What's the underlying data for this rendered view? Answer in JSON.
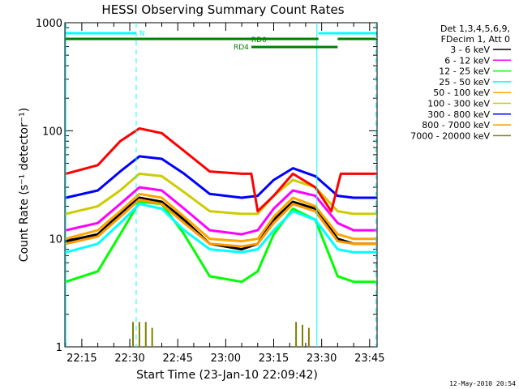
{
  "chart_data": {
    "type": "line",
    "title": "HESSI Observing Summary Count Rates",
    "xlabel": "Start Time (23-Jan-10 22:09:42)",
    "ylabel": "Count Rate (s⁻¹ detector⁻¹)",
    "y_scale": "log",
    "ylim": [
      1,
      1000
    ],
    "xlim": [
      "22:09:42",
      "23:47:20"
    ],
    "x_ticks": [
      "22:15",
      "22:30",
      "22:45",
      "23:00",
      "23:15",
      "23:30",
      "23:45"
    ],
    "y_ticks": [
      "1",
      "10",
      "100",
      "1000"
    ],
    "legend_title": [
      "Det 1,3,4,5,6,9,",
      "FDecim 1, Att 0"
    ],
    "legend_position": "right-outside",
    "footer_date": "12-May-2010 20:54",
    "series": [
      {
        "name": "3 - 6 keV",
        "color": "#000000",
        "x": [
          "22:10",
          "22:20",
          "22:27",
          "22:33",
          "22:40",
          "22:47",
          "22:55",
          "23:05",
          "23:10",
          "23:15",
          "23:21",
          "23:28",
          "23:35",
          "23:40",
          "23:47"
        ],
        "values": [
          9.5,
          11,
          17,
          24,
          22,
          15,
          9,
          8,
          9,
          15,
          22,
          19,
          10,
          9,
          9
        ]
      },
      {
        "name": "6 - 12 keV",
        "color": "#ff00ff",
        "x": [
          "22:10",
          "22:20",
          "22:27",
          "22:33",
          "22:40",
          "22:47",
          "22:55",
          "23:05",
          "23:10",
          "23:15",
          "23:21",
          "23:28",
          "23:35",
          "23:40",
          "23:47"
        ],
        "values": [
          12,
          14,
          21,
          30,
          28,
          19,
          12,
          11,
          12,
          19,
          28,
          25,
          14,
          12,
          12
        ]
      },
      {
        "name": "12 - 25 keV",
        "color": "#00ff00",
        "x": [
          "22:10",
          "22:20",
          "22:27",
          "22:33",
          "22:40",
          "22:47",
          "22:55",
          "23:05",
          "23:10",
          "23:15",
          "23:21",
          "23:28",
          "23:35",
          "23:40",
          "23:47"
        ],
        "values": [
          4,
          5,
          11,
          22,
          21,
          11,
          4.5,
          4,
          5,
          11,
          19,
          15,
          4.5,
          4,
          4
        ]
      },
      {
        "name": "25 - 50 keV",
        "color": "#00ffff",
        "x": [
          "22:10",
          "22:20",
          "22:27",
          "22:33",
          "22:40",
          "22:47",
          "22:55",
          "23:05",
          "23:10",
          "23:15",
          "23:21",
          "23:28",
          "23:35",
          "23:40",
          "23:47"
        ],
        "values": [
          7.5,
          9,
          14,
          21,
          19,
          12,
          8,
          7.5,
          8,
          12,
          18,
          15,
          8,
          7.5,
          7.5
        ]
      },
      {
        "name": "50 - 100 keV",
        "color": "#ffa500",
        "x": [
          "22:10",
          "22:20",
          "22:27",
          "22:33",
          "22:40",
          "22:47",
          "22:55",
          "23:05",
          "23:10",
          "23:15",
          "23:21",
          "23:28",
          "23:35",
          "23:40",
          "23:47"
        ],
        "values": [
          10,
          12,
          18,
          26,
          24,
          16,
          10,
          9.5,
          10,
          16,
          24,
          20,
          11,
          10,
          10
        ]
      },
      {
        "name": "100 - 300 keV",
        "color": "#cccc00",
        "x": [
          "22:10",
          "22:20",
          "22:27",
          "22:33",
          "22:40",
          "22:47",
          "22:55",
          "23:05",
          "23:10",
          "23:15",
          "23:21",
          "23:28",
          "23:35",
          "23:40",
          "23:47"
        ],
        "values": [
          17,
          20,
          28,
          40,
          38,
          27,
          18,
          17,
          17,
          25,
          35,
          30,
          18,
          17,
          17
        ]
      },
      {
        "name": "300 - 800 keV",
        "color": "#0000ff",
        "x": [
          "22:10",
          "22:20",
          "22:27",
          "22:33",
          "22:40",
          "22:47",
          "22:55",
          "23:05",
          "23:10",
          "23:15",
          "23:21",
          "23:28",
          "23:35",
          "23:40",
          "23:47"
        ],
        "values": [
          24,
          28,
          42,
          58,
          55,
          40,
          26,
          24,
          25,
          35,
          45,
          38,
          25,
          24,
          24
        ]
      },
      {
        "name": "800 - 7000 keV",
        "color": "#ff9900",
        "x": [
          "22:10",
          "22:20",
          "22:27",
          "22:33",
          "22:40",
          "22:47",
          "22:55",
          "23:05",
          "23:10",
          "23:15",
          "23:21",
          "23:28",
          "23:35",
          "23:40",
          "23:47"
        ],
        "values": [
          9,
          10.5,
          16,
          23,
          21,
          14,
          9,
          8.5,
          9,
          14,
          21,
          18,
          9.5,
          9,
          9
        ]
      },
      {
        "name": "7000 - 20000 keV",
        "color": "#808000",
        "x": [
          "22:31",
          "22:33",
          "22:35",
          "22:37",
          "23:22",
          "23:24",
          "23:26"
        ],
        "values": [
          1.7,
          1.7,
          1.7,
          1.5,
          1.7,
          1.6,
          1.5
        ]
      },
      {
        "name": "",
        "color": "#ff0000",
        "x": [
          "22:10",
          "22:20",
          "22:27",
          "22:33",
          "22:40",
          "22:47",
          "22:55",
          "23:05",
          "23:08",
          "23:10",
          "23:15",
          "23:21",
          "23:28",
          "23:33",
          "23:36",
          "23:47"
        ],
        "values": [
          40,
          48,
          80,
          105,
          95,
          65,
          42,
          40,
          40,
          18,
          25,
          40,
          30,
          18,
          40,
          40
        ]
      }
    ],
    "annotations": {
      "attenuator_bar_label": "N",
      "rd_bars": [
        {
          "label": "RD0",
          "color": "#008000"
        },
        {
          "label": "RD4",
          "color": "#008000"
        }
      ],
      "bar_colors": {
        "cyan": "#00ffff",
        "green": "#008000"
      }
    }
  }
}
